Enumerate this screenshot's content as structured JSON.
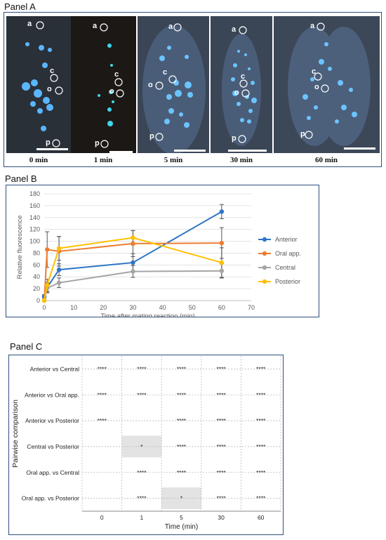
{
  "panels": {
    "a": {
      "title": "Panel A"
    },
    "b": {
      "title": "Panel B"
    },
    "c": {
      "title": "Panel C"
    }
  },
  "micrographs": {
    "region_letters": {
      "a": "a",
      "c": "c",
      "o": "o",
      "p": "p"
    },
    "images": [
      {
        "time": "0 min",
        "bg": "#2a3038"
      },
      {
        "time": "1 min",
        "bg": "#1c1816"
      },
      {
        "time": "5 min",
        "bg": "#3a4656"
      },
      {
        "time": "30 min",
        "bg": "#3a4656"
      },
      {
        "time": "60 min",
        "bg": "#3c4858"
      }
    ]
  },
  "chart_data": [
    {
      "type": "line",
      "ylabel": "Relative fluorescence",
      "xlabel": "Time after mating reaction (min)",
      "xlim": [
        0,
        70
      ],
      "ylim": [
        0,
        180
      ],
      "xticks": [
        "0",
        "10",
        "20",
        "30",
        "40",
        "50",
        "60",
        "70"
      ],
      "yticks": [
        "0",
        "20",
        "40",
        "60",
        "80",
        "100",
        "120",
        "140",
        "160",
        "180"
      ],
      "x": [
        0,
        1,
        5,
        30,
        60
      ],
      "legend_position": "right",
      "grid": "horizontal",
      "series": [
        {
          "name": "Anterior",
          "color": "#2e75c6",
          "values": [
            7,
            22,
            52,
            64,
            150
          ],
          "errors": [
            3,
            8,
            10,
            15,
            12
          ]
        },
        {
          "name": "Oral app.",
          "color": "#ed7d31",
          "values": [
            0,
            86,
            83,
            96,
            97
          ],
          "errors": [
            0,
            30,
            25,
            22,
            26
          ]
        },
        {
          "name": "Central",
          "color": "#a5a5a5",
          "values": [
            0,
            21,
            30,
            49,
            50
          ],
          "errors": [
            0,
            8,
            8,
            10,
            12
          ]
        },
        {
          "name": "Posterior",
          "color": "#ffc000",
          "values": [
            0,
            26,
            88,
            106,
            64
          ],
          "errors": [
            0,
            10,
            20,
            12,
            25
          ]
        }
      ]
    },
    {
      "type": "table",
      "ylabel": "Pairwise comparison",
      "xlabel": "Time (min)",
      "columns": [
        "0",
        "1",
        "5",
        "30",
        "60"
      ],
      "rows": [
        {
          "label": "Anterior vs Central",
          "cells": [
            "****",
            "****",
            "****",
            "****",
            "****"
          ]
        },
        {
          "label": "Anterior vs Oral app.",
          "cells": [
            "****",
            "****",
            "****",
            "****",
            "****"
          ]
        },
        {
          "label": "Anterior vs Posterior",
          "cells": [
            "****",
            "",
            "****",
            "****",
            "****"
          ]
        },
        {
          "label": "Central vs Posterior",
          "cells": [
            "",
            "*",
            "****",
            "****",
            "****"
          ]
        },
        {
          "label": "Oral app. vs Central",
          "cells": [
            "",
            "****",
            "****",
            "****",
            "****"
          ]
        },
        {
          "label": "Oral app. vs Posterior",
          "cells": [
            "",
            "****",
            "*",
            "****",
            "****"
          ]
        }
      ],
      "highlight_color": "#e3e3e3"
    }
  ]
}
